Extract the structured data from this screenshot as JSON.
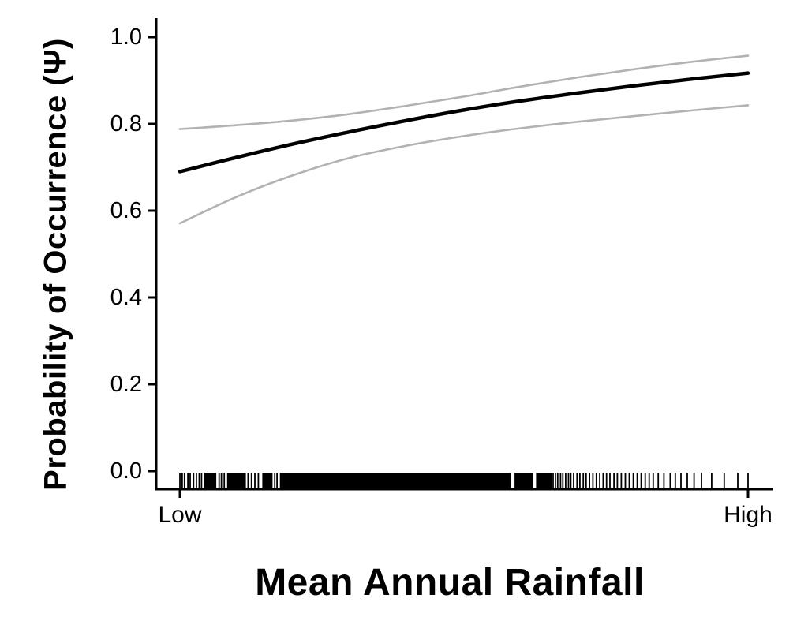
{
  "figure": {
    "background": "#ffffff"
  },
  "chart_data": {
    "type": "line",
    "title": "",
    "xlabel": "Mean Annual Rainfall",
    "ylabel": "Probability of Occurrence (Ψ)",
    "colors": {
      "mean_line": "#000000",
      "ci_line": "#b2b2b2",
      "axis": "#000000",
      "rug": "#000000"
    },
    "x_axis": {
      "label": "Mean Annual Rainfall",
      "xlim": [
        0,
        1
      ],
      "ticks": [
        {
          "label": "Low",
          "value": 0
        },
        {
          "label": "High",
          "value": 1
        }
      ]
    },
    "y_axis": {
      "label": "Probability of Occurrence (Ψ)",
      "ylim": [
        0,
        1
      ],
      "ticks": [
        {
          "label": "0.0",
          "value": 0.0
        },
        {
          "label": "0.2",
          "value": 0.2
        },
        {
          "label": "0.4",
          "value": 0.4
        },
        {
          "label": "0.6",
          "value": 0.6
        },
        {
          "label": "0.8",
          "value": 0.8
        },
        {
          "label": "1.0",
          "value": 1.0
        }
      ]
    },
    "x": [
      0,
      0.1,
      0.2,
      0.3,
      0.4,
      0.5,
      0.6,
      0.7,
      0.8,
      0.9,
      1.0
    ],
    "series": [
      {
        "name": "mean_estimate",
        "color": "#000000",
        "width": 4.5,
        "values": [
          0.69,
          0.723,
          0.754,
          0.782,
          0.808,
          0.832,
          0.853,
          0.871,
          0.888,
          0.903,
          0.917
        ]
      },
      {
        "name": "upper_ci",
        "color": "#b2b2b2",
        "width": 2.6,
        "values": [
          0.788,
          0.797,
          0.808,
          0.823,
          0.842,
          0.863,
          0.886,
          0.907,
          0.926,
          0.943,
          0.957
        ]
      },
      {
        "name": "lower_ci",
        "color": "#b2b2b2",
        "width": 2.6,
        "values": [
          0.571,
          0.632,
          0.682,
          0.722,
          0.75,
          0.772,
          0.79,
          0.805,
          0.818,
          0.831,
          0.843
        ]
      }
    ],
    "rug": {
      "dense_segments": [
        {
          "start": 0.043,
          "end": 0.064
        },
        {
          "start": 0.083,
          "end": 0.116
        },
        {
          "start": 0.145,
          "end": 0.163
        },
        {
          "start": 0.176,
          "end": 0.583
        },
        {
          "start": 0.589,
          "end": 0.622
        },
        {
          "start": 0.627,
          "end": 0.655
        }
      ],
      "ticks": [
        0.0,
        0.004,
        0.008,
        0.014,
        0.018,
        0.024,
        0.029,
        0.034,
        0.038,
        0.069,
        0.073,
        0.078,
        0.12,
        0.126,
        0.132,
        0.138,
        0.167,
        0.171,
        0.657,
        0.661,
        0.665,
        0.67,
        0.674,
        0.679,
        0.684,
        0.688,
        0.693,
        0.699,
        0.704,
        0.71,
        0.715,
        0.721,
        0.727,
        0.733,
        0.739,
        0.745,
        0.751,
        0.757,
        0.764,
        0.77,
        0.777,
        0.784,
        0.791,
        0.798,
        0.805,
        0.812,
        0.819,
        0.826,
        0.833,
        0.842,
        0.852,
        0.863,
        0.872,
        0.882,
        0.893,
        0.905,
        0.918,
        0.936,
        0.958,
        0.982,
        1.0
      ]
    }
  }
}
